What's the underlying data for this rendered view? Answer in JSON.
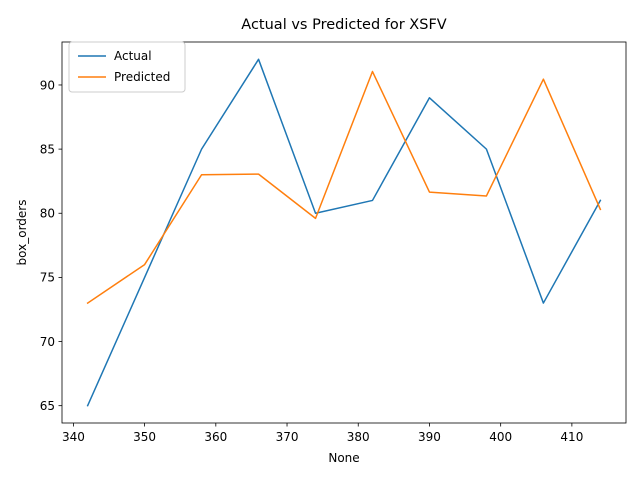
{
  "chart_data": {
    "type": "line",
    "title": "Actual vs Predicted for XSFV",
    "xlabel": "None",
    "ylabel": "box_orders",
    "x": [
      342,
      350,
      358,
      366,
      374,
      382,
      390,
      398,
      406,
      414
    ],
    "series": [
      {
        "name": "Actual",
        "color": "#1f77b4",
        "values": [
          65,
          75,
          85,
          92,
          80,
          81,
          89,
          85,
          73,
          81
        ]
      },
      {
        "name": "Predicted",
        "color": "#ff7f0e",
        "values": [
          73,
          76,
          83,
          83.05,
          79.6,
          91.05,
          81.65,
          81.35,
          90.45,
          80.3
        ]
      }
    ],
    "xlim": [
      338.4,
      417.6
    ],
    "ylim": [
      63.65,
      93.35
    ],
    "xticks": [
      340,
      350,
      360,
      370,
      380,
      390,
      400,
      410
    ],
    "yticks": [
      65,
      70,
      75,
      80,
      85,
      90
    ],
    "grid": false,
    "legend_position": "upper-left"
  }
}
